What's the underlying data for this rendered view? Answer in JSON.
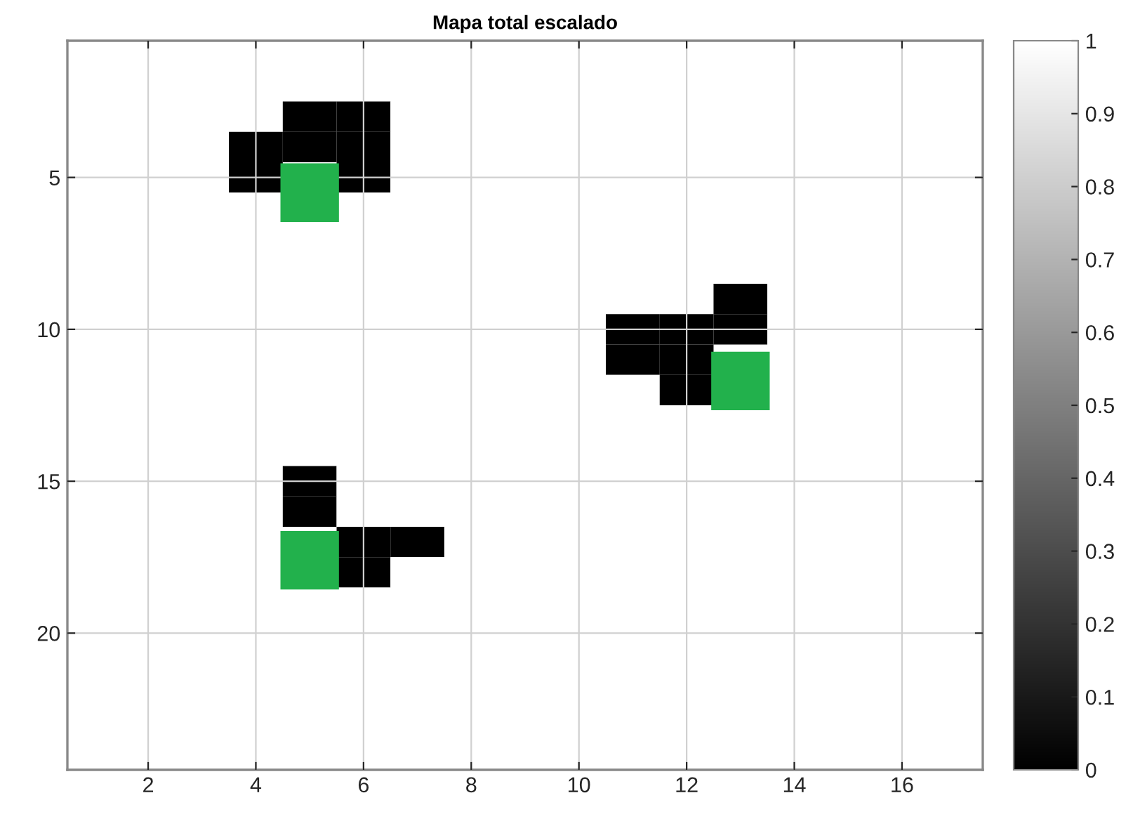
{
  "chart_data": {
    "type": "heatmap",
    "title": "Mapa total escalado",
    "categories": [
      null,
      "2",
      null,
      "4",
      null,
      "6",
      null,
      "8",
      null,
      "10",
      null,
      "12",
      null,
      "14",
      null,
      "16",
      null
    ],
    "y_categories": [
      null,
      null,
      null,
      null,
      "5",
      null,
      null,
      null,
      null,
      "10",
      null,
      null,
      null,
      null,
      "15",
      null,
      null,
      null,
      null,
      "20",
      null,
      null,
      null,
      null
    ],
    "cells": [
      [
        1,
        1,
        1,
        1,
        1,
        1,
        1,
        1,
        1,
        1,
        1,
        1,
        1,
        1,
        1,
        1,
        1
      ],
      [
        1,
        1,
        1,
        1,
        1,
        1,
        1,
        1,
        1,
        1,
        1,
        1,
        1,
        1,
        1,
        1,
        1
      ],
      [
        1,
        1,
        1,
        1,
        0,
        0,
        1,
        1,
        1,
        1,
        1,
        1,
        1,
        1,
        1,
        1,
        1
      ],
      [
        1,
        1,
        1,
        0,
        0,
        0,
        1,
        1,
        1,
        1,
        1,
        1,
        1,
        1,
        1,
        1,
        1
      ],
      [
        1,
        1,
        1,
        0,
        null,
        0,
        1,
        1,
        1,
        1,
        1,
        1,
        1,
        1,
        1,
        1,
        1
      ],
      [
        1,
        1,
        1,
        1,
        null,
        1,
        1,
        1,
        1,
        1,
        1,
        1,
        1,
        1,
        1,
        1,
        1
      ],
      [
        1,
        1,
        1,
        1,
        1,
        1,
        1,
        1,
        1,
        1,
        1,
        1,
        1,
        1,
        1,
        1,
        1
      ],
      [
        1,
        1,
        1,
        1,
        1,
        1,
        1,
        1,
        1,
        1,
        1,
        1,
        1,
        1,
        1,
        1,
        1
      ],
      [
        1,
        1,
        1,
        1,
        1,
        1,
        1,
        1,
        1,
        1,
        1,
        1,
        0,
        1,
        1,
        1,
        1
      ],
      [
        1,
        1,
        1,
        1,
        1,
        1,
        1,
        1,
        1,
        1,
        0,
        0,
        0,
        1,
        1,
        1,
        1
      ],
      [
        1,
        1,
        1,
        1,
        1,
        1,
        1,
        1,
        1,
        1,
        0,
        0,
        null,
        1,
        1,
        1,
        1
      ],
      [
        1,
        1,
        1,
        1,
        1,
        1,
        1,
        1,
        1,
        1,
        1,
        0,
        null,
        1,
        1,
        1,
        1
      ],
      [
        1,
        1,
        1,
        1,
        1,
        1,
        1,
        1,
        1,
        1,
        1,
        1,
        1,
        1,
        1,
        1,
        1
      ],
      [
        1,
        1,
        1,
        1,
        1,
        1,
        1,
        1,
        1,
        1,
        1,
        1,
        1,
        1,
        1,
        1,
        1
      ],
      [
        1,
        1,
        1,
        1,
        0,
        1,
        1,
        1,
        1,
        1,
        1,
        1,
        1,
        1,
        1,
        1,
        1
      ],
      [
        1,
        1,
        1,
        1,
        0,
        1,
        1,
        1,
        1,
        1,
        1,
        1,
        1,
        1,
        1,
        1,
        1
      ],
      [
        1,
        1,
        1,
        1,
        null,
        0,
        0,
        1,
        1,
        1,
        1,
        1,
        1,
        1,
        1,
        1,
        1
      ],
      [
        1,
        1,
        1,
        1,
        null,
        0,
        1,
        1,
        1,
        1,
        1,
        1,
        1,
        1,
        1,
        1,
        1
      ],
      [
        1,
        1,
        1,
        1,
        1,
        1,
        1,
        1,
        1,
        1,
        1,
        1,
        1,
        1,
        1,
        1,
        1
      ],
      [
        1,
        1,
        1,
        1,
        1,
        1,
        1,
        1,
        1,
        1,
        1,
        1,
        1,
        1,
        1,
        1,
        1
      ],
      [
        1,
        1,
        1,
        1,
        1,
        1,
        1,
        1,
        1,
        1,
        1,
        1,
        1,
        1,
        1,
        1,
        1
      ],
      [
        1,
        1,
        1,
        1,
        1,
        1,
        1,
        1,
        1,
        1,
        1,
        1,
        1,
        1,
        1,
        1,
        1
      ],
      [
        1,
        1,
        1,
        1,
        1,
        1,
        1,
        1,
        1,
        1,
        1,
        1,
        1,
        1,
        1,
        1,
        1
      ],
      [
        1,
        1,
        1,
        1,
        1,
        1,
        1,
        1,
        1,
        1,
        1,
        1,
        1,
        1,
        1,
        1,
        1
      ]
    ],
    "clim": [
      0,
      1
    ],
    "cticks": [
      0,
      0.1,
      0.2,
      0.3,
      0.4,
      0.5,
      0.6,
      0.7,
      0.8,
      0.9,
      1
    ],
    "series": [
      {
        "type": "scatter",
        "values": [
          null,
          null,
          null,
          null,
          4.5,
          null,
          null,
          null,
          null,
          null,
          null,
          null,
          10.7,
          null,
          null,
          null,
          null
        ],
        "color": "#22b14c"
      },
      {
        "type": "scatter",
        "values": [
          null,
          null,
          null,
          null,
          16.6,
          null,
          null,
          null,
          null,
          null,
          null,
          null,
          null,
          null,
          null,
          null,
          null
        ],
        "color": "#22b14c"
      }
    ],
    "marker": "square",
    "grid": true
  }
}
